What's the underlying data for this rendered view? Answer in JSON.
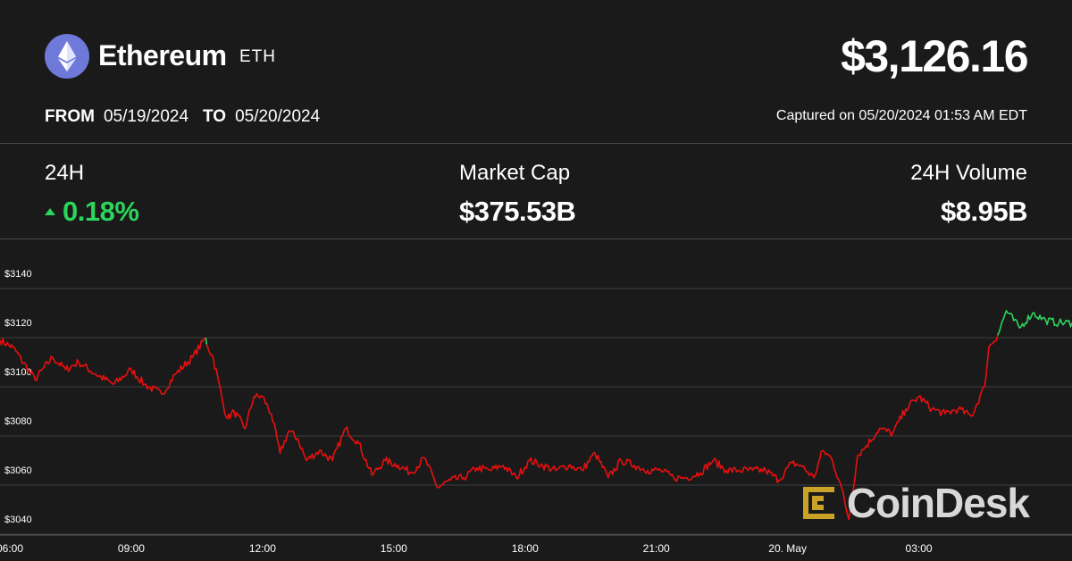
{
  "header": {
    "coin_name": "Ethereum",
    "coin_symbol": "ETH",
    "price": "$3,126.16",
    "from_label": "FROM",
    "from_date": "05/19/2024",
    "to_label": "TO",
    "to_date": "05/20/2024",
    "captured": "Captured on 05/20/2024 01:53 AM EDT"
  },
  "stats": {
    "change_label": "24H",
    "change_value": "0.18%",
    "market_cap_label": "Market Cap",
    "market_cap_value": "$375.53B",
    "volume_label": "24H Volume",
    "volume_value": "$8.95B"
  },
  "watermark": {
    "text": "CoinDesk"
  },
  "colors": {
    "background": "#1a1a1a",
    "up": "#2bd45b",
    "down": "#e8100f",
    "grid": "#3d3d3d",
    "logo_bg": "#6f79d9",
    "watermark_gold": "#c9a227"
  },
  "chart_data": {
    "type": "line",
    "reference_price": 3120,
    "ylim": [
      3030,
      3150
    ],
    "yticks": [
      3140,
      3120,
      3100,
      3080,
      3060,
      3040
    ],
    "ytick_labels": [
      "$3140",
      "$3120",
      "$3100",
      "$3080",
      "$3060",
      "$3040"
    ],
    "x_range": [
      6,
      30.5
    ],
    "xticks": [
      6,
      9,
      12,
      15,
      18,
      21,
      24,
      27
    ],
    "xtick_labels": [
      "06:00",
      "09:00",
      "12:00",
      "15:00",
      "18:00",
      "21:00",
      "20. May",
      "03:00"
    ],
    "series": [
      {
        "x": [
          6.0,
          6.3,
          6.8,
          7.2,
          7.5,
          7.8,
          8.2,
          8.6,
          9.0,
          9.3,
          9.7,
          10.0,
          10.4,
          10.7,
          10.75,
          10.85,
          11.0,
          11.1,
          11.2,
          11.35,
          11.6,
          11.8,
          12.0,
          12.2,
          12.4,
          12.6,
          12.8,
          13.0,
          13.3,
          13.6,
          13.9,
          14.2,
          14.5,
          14.8,
          15.1,
          15.4,
          15.7,
          16.0,
          16.3,
          16.6,
          16.9,
          17.2,
          17.5,
          17.8,
          18.1,
          18.4,
          18.7,
          19.0,
          19.3,
          19.6,
          19.9,
          20.2,
          20.5,
          20.8,
          21.1,
          21.4,
          21.7,
          22.0,
          22.3,
          22.6,
          22.9,
          23.2,
          23.5,
          23.8,
          24.1,
          24.3,
          24.6,
          24.8,
          25.0,
          25.2,
          25.4,
          25.6,
          25.8,
          26.1,
          26.4,
          26.7,
          27.0,
          27.3,
          27.6,
          27.9,
          28.2,
          28.5,
          28.6,
          28.8,
          29.0,
          29.3,
          29.6,
          29.9,
          30.2,
          30.5
        ],
        "y": [
          3119,
          3116,
          3103,
          3112,
          3107,
          3110,
          3105,
          3101,
          3107,
          3101,
          3097,
          3105,
          3112,
          3120,
          3116,
          3113,
          3102,
          3093,
          3087,
          3090,
          3083,
          3096,
          3096,
          3089,
          3073,
          3082,
          3079,
          3070,
          3074,
          3070,
          3083,
          3077,
          3064,
          3070,
          3068,
          3065,
          3071,
          3059,
          3062,
          3063,
          3067,
          3066,
          3068,
          3063,
          3070,
          3068,
          3066,
          3068,
          3066,
          3073,
          3063,
          3070,
          3068,
          3066,
          3066,
          3063,
          3063,
          3065,
          3070,
          3066,
          3066,
          3066,
          3066,
          3062,
          3069,
          3068,
          3063,
          3074,
          3071,
          3061,
          3046,
          3072,
          3076,
          3083,
          3081,
          3091,
          3096,
          3091,
          3089,
          3091,
          3088,
          3100,
          3116,
          3121,
          3131,
          3124,
          3130,
          3127,
          3126,
          3126
        ]
      }
    ]
  }
}
